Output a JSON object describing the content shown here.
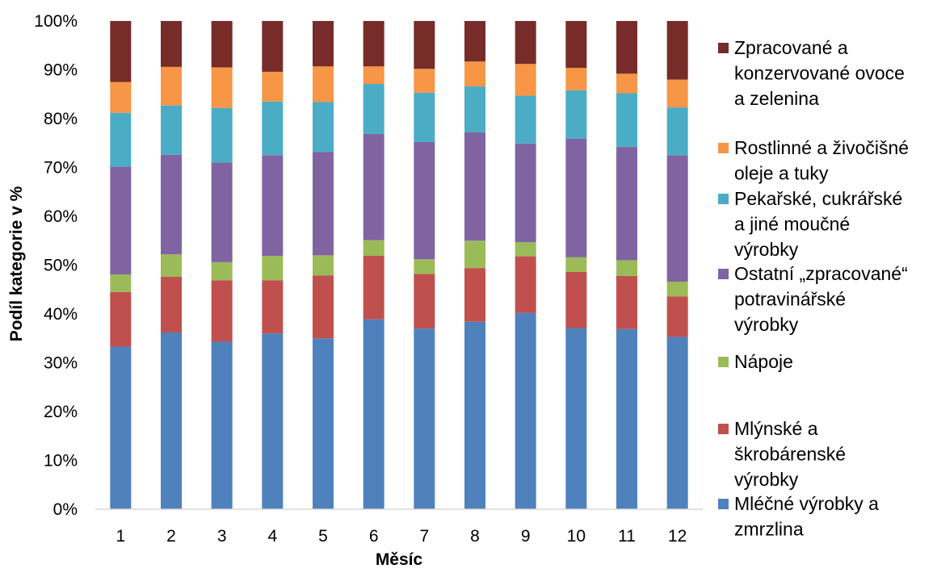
{
  "chart_data": {
    "type": "bar",
    "stacked": "percent",
    "xlabel": "Měsíc",
    "ylabel": "Podíl kategorie v %",
    "ylim": [
      0,
      100
    ],
    "yticks": [
      "0%",
      "10%",
      "20%",
      "30%",
      "40%",
      "50%",
      "60%",
      "70%",
      "80%",
      "90%",
      "100%"
    ],
    "categories": [
      "1",
      "2",
      "3",
      "4",
      "5",
      "6",
      "7",
      "8",
      "9",
      "10",
      "11",
      "12"
    ],
    "grid": false,
    "legend_position": "right",
    "series": [
      {
        "name": "Mléčné výrobky a zmrzlina",
        "color": "#4f81bd",
        "values": [
          33.3,
          36.2,
          34.3,
          36.0,
          35.0,
          38.9,
          37.0,
          38.4,
          40.2,
          37.1,
          36.9,
          35.3
        ]
      },
      {
        "name": "Mlýnské a škrobárenské výrobky",
        "color": "#c0504d",
        "values": [
          11.2,
          11.4,
          12.6,
          10.9,
          12.9,
          13.0,
          11.2,
          11.0,
          11.6,
          11.5,
          10.9,
          8.3
        ]
      },
      {
        "name": "Nápoje",
        "color": "#9bbb59",
        "values": [
          3.6,
          4.6,
          3.7,
          5.0,
          4.1,
          3.2,
          3.0,
          5.6,
          2.9,
          3.0,
          3.2,
          3.0
        ]
      },
      {
        "name": "Ostatní „zpracované“ potravinářské výrobky",
        "color": "#8064a2",
        "values": [
          22.1,
          20.4,
          20.4,
          20.6,
          21.2,
          21.8,
          24.0,
          22.2,
          20.2,
          24.3,
          23.2,
          25.9
        ]
      },
      {
        "name": "Pekařské, cukrářské a jiné moučné výrobky",
        "color": "#4bacc6",
        "values": [
          11.0,
          10.1,
          11.2,
          11.0,
          10.2,
          10.2,
          10.1,
          9.4,
          9.8,
          9.9,
          11.0,
          9.8
        ]
      },
      {
        "name": "Rostlinné a živočišné oleje a tuky",
        "color": "#f79646",
        "values": [
          6.3,
          7.9,
          8.3,
          6.1,
          7.3,
          3.6,
          4.9,
          5.1,
          6.5,
          4.6,
          4.0,
          5.7
        ]
      },
      {
        "name": "Zpracované a konzervované ovoce a zelenina",
        "color": "#772c2a",
        "values": [
          12.5,
          9.4,
          9.5,
          10.4,
          9.3,
          9.3,
          9.8,
          8.3,
          8.8,
          9.6,
          10.8,
          12.0
        ]
      }
    ],
    "legend_lines": [
      [
        "Zpracované a",
        "konzervované ovoce",
        "a zelenina"
      ],
      [
        "Rostlinné a živočišné",
        "oleje a tuky"
      ],
      [
        "Pekařské, cukrářské",
        "a jiné moučné",
        "výrobky"
      ],
      [
        "Ostatní „zpracované“",
        "potravinářské",
        "výrobky"
      ],
      [
        "Nápoje"
      ],
      [
        "Mlýnské a",
        "škrobárenské",
        "výrobky"
      ],
      [
        "Mléčné výrobky a",
        "zmrzlina"
      ]
    ]
  }
}
